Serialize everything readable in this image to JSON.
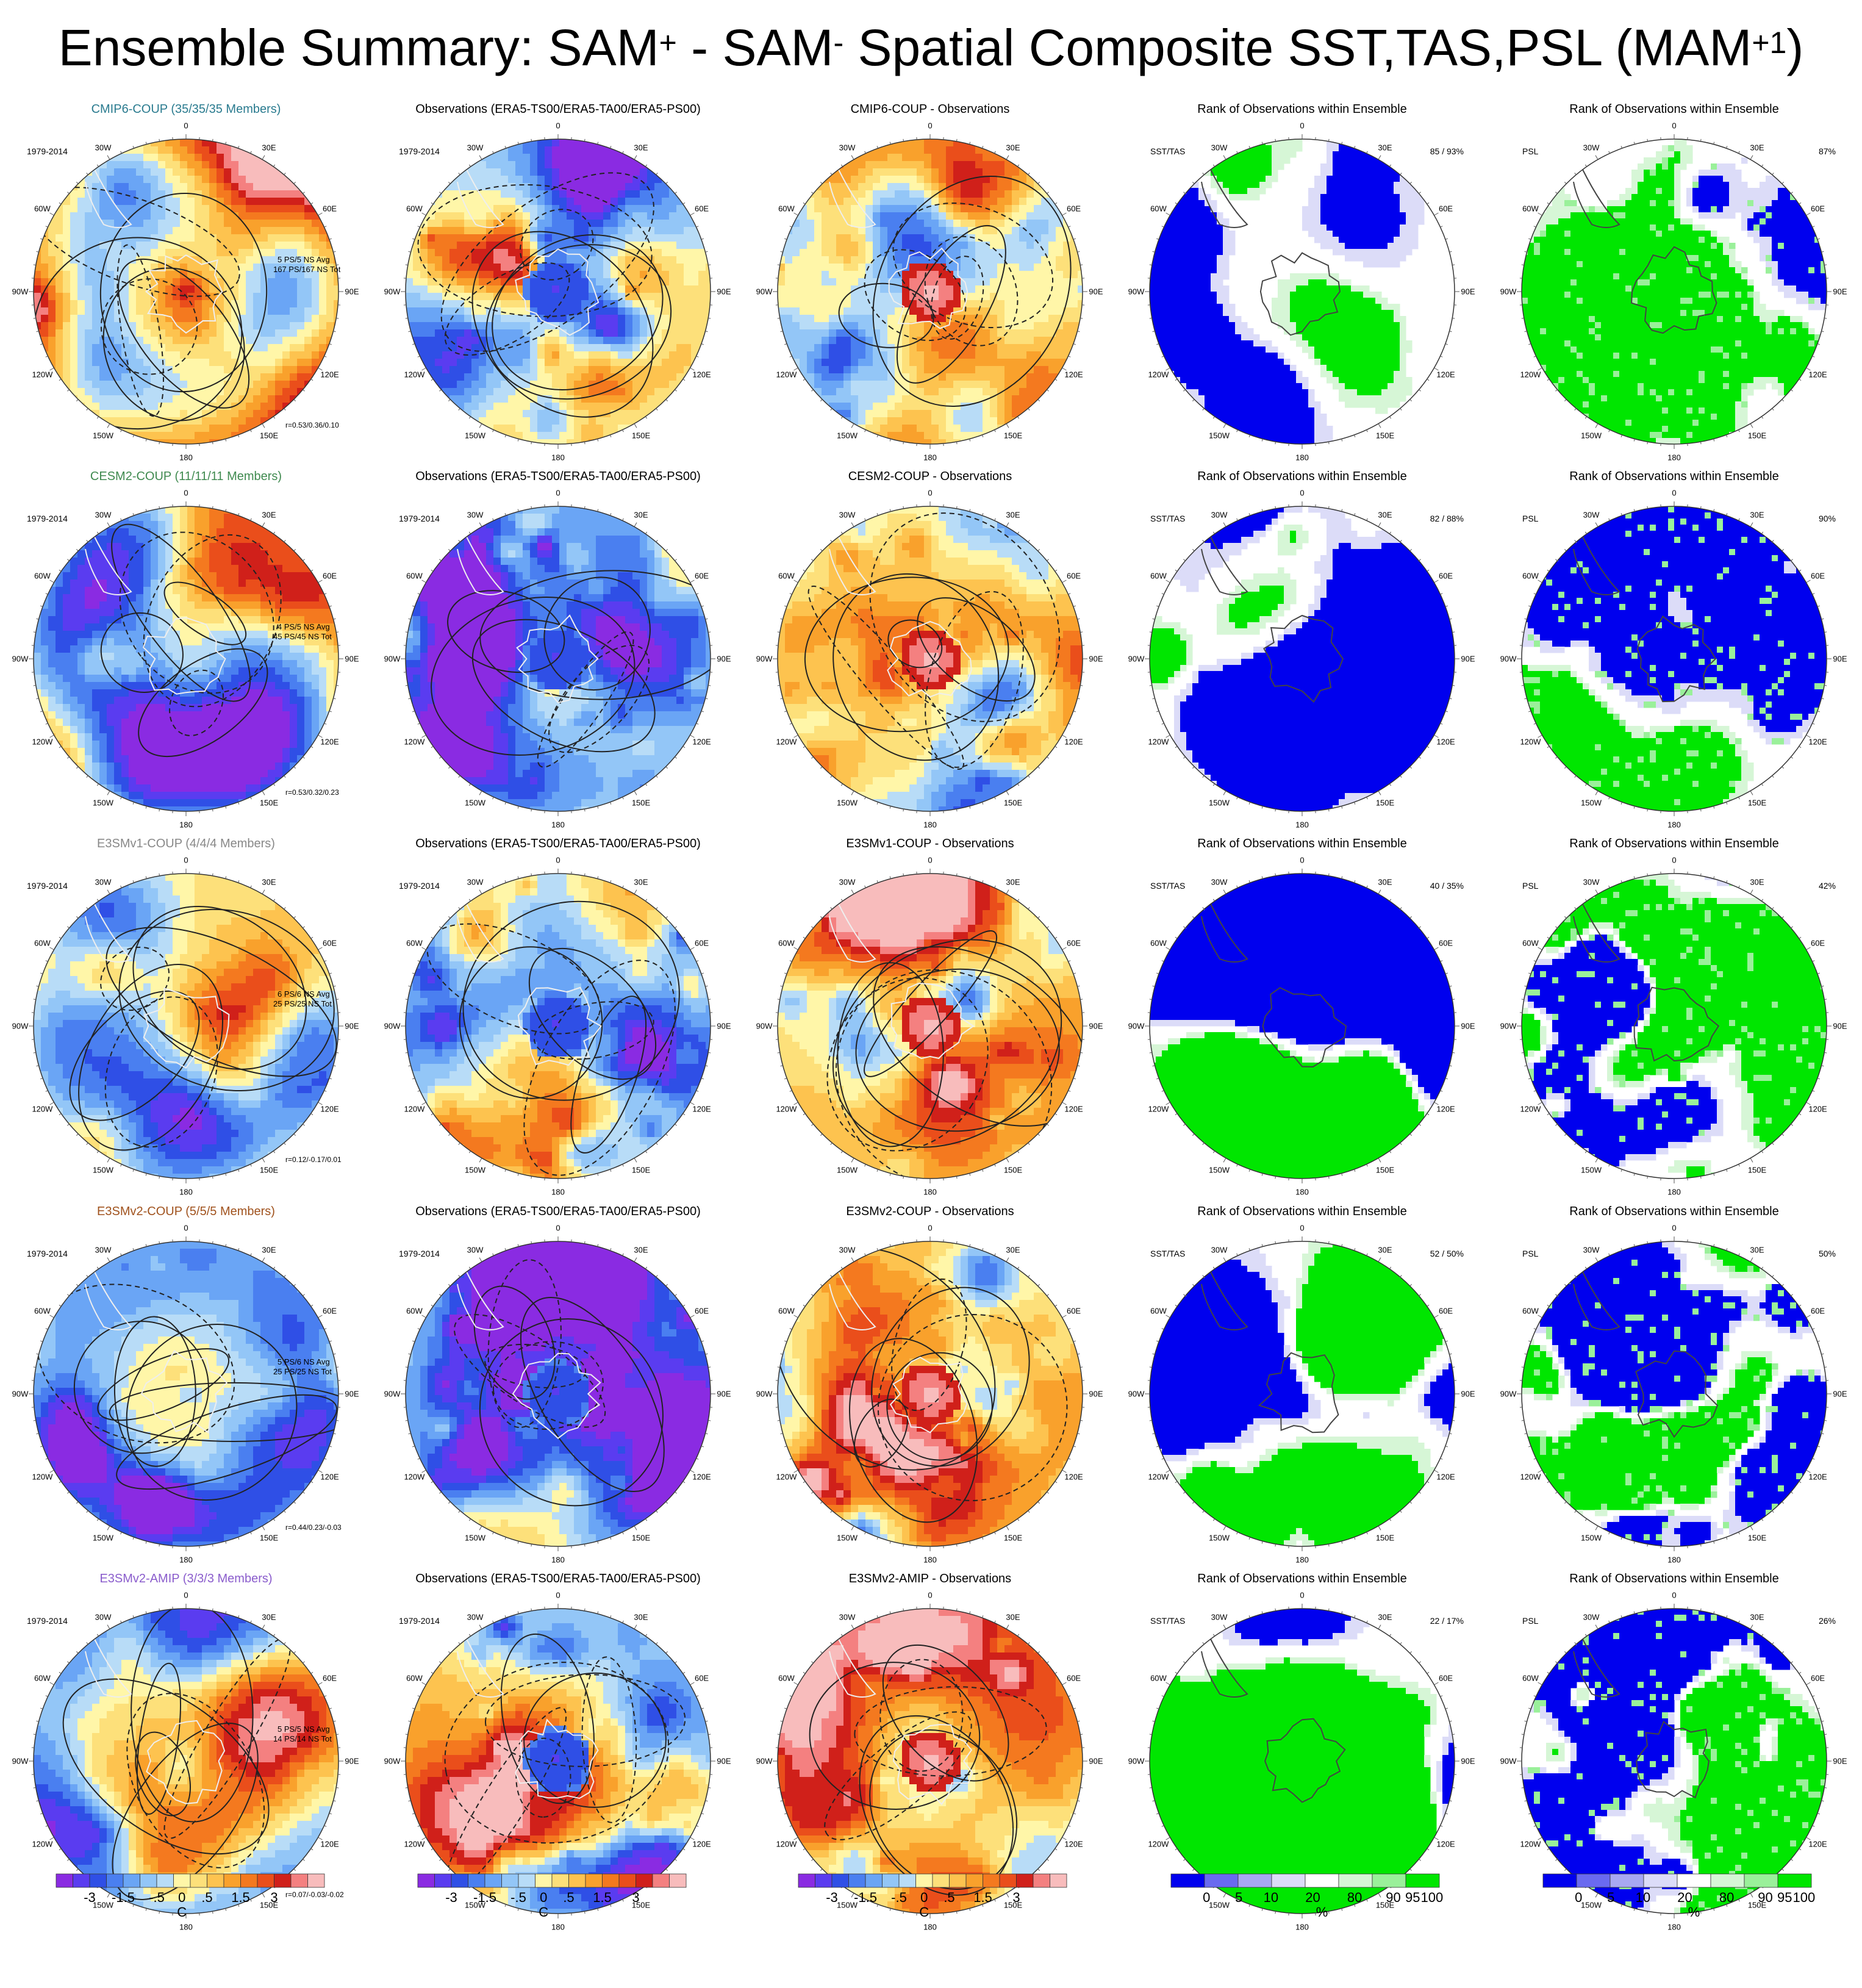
{
  "title": {
    "prefix": "Ensemble Summary: SAM",
    "sup1": "+",
    "mid": " - SAM",
    "sup2": "-",
    "rest": " Spatial Composite SST,TAS,PSL (MAM",
    "sup3": "+1",
    "end": ")"
  },
  "lon_labels": [
    "0",
    "30E",
    "60E",
    "90E",
    "120E",
    "150E",
    "180",
    "150W",
    "120W",
    "90W",
    "60W",
    "30W"
  ],
  "period_label": "1979-2014",
  "rank_labels": {
    "sst": "SST/TAS",
    "psl": "PSL"
  },
  "rows": [
    {
      "model": {
        "title": "CMIP6-COUP (35/35/35 Members)",
        "title_color": "#2a7b8f",
        "ns_line1": "5 PS/5 NS Avg",
        "ns_line2": "167 PS/167 NS Tot",
        "corr": "r=0.53/0.36/0.10"
      },
      "obs_title": "Observations (ERA5-TS00/ERA5-TA00/ERA5-PS00)",
      "diff_title": "CMIP6-COUP - Observations",
      "rank_sst": {
        "title": "Rank of Observations within Ensemble",
        "pct": "85 / 93%"
      },
      "rank_psl": {
        "title": "Rank of Observations within Ensemble",
        "pct": "87%"
      }
    },
    {
      "model": {
        "title": "CESM2-COUP (11/11/11 Members)",
        "title_color": "#3f8a4f",
        "ns_line1": "4 PS/5 NS Avg",
        "ns_line2": "45 PS/45 NS Tot",
        "corr": "r=0.53/0.32/0.23"
      },
      "obs_title": "Observations (ERA5-TS00/ERA5-TA00/ERA5-PS00)",
      "diff_title": "CESM2-COUP - Observations",
      "rank_sst": {
        "title": "Rank of Observations within Ensemble",
        "pct": "82 / 88%"
      },
      "rank_psl": {
        "title": "Rank of Observations within Ensemble",
        "pct": "90%"
      }
    },
    {
      "model": {
        "title": "E3SMv1-COUP (4/4/4 Members)",
        "title_color": "#888888",
        "ns_line1": "6 PS/6 NS Avg",
        "ns_line2": "25 PS/25 NS Tot",
        "corr": "r=0.12/-0.17/0.01"
      },
      "obs_title": "Observations (ERA5-TS00/ERA5-TA00/ERA5-PS00)",
      "diff_title": "E3SMv1-COUP - Observations",
      "rank_sst": {
        "title": "Rank of Observations within Ensemble",
        "pct": "40 / 35%"
      },
      "rank_psl": {
        "title": "Rank of Observations within Ensemble",
        "pct": "42%"
      }
    },
    {
      "model": {
        "title": "E3SMv2-COUP (5/5/5 Members)",
        "title_color": "#a0521d",
        "ns_line1": "5 PS/6 NS Avg",
        "ns_line2": "25 PS/25 NS Tot",
        "corr": "r=0.44/0.23/-0.03"
      },
      "obs_title": "Observations (ERA5-TS00/ERA5-TA00/ERA5-PS00)",
      "diff_title": "E3SMv2-COUP - Observations",
      "rank_sst": {
        "title": "Rank of Observations within Ensemble",
        "pct": "52 / 50%"
      },
      "rank_psl": {
        "title": "Rank of Observations within Ensemble",
        "pct": "50%"
      }
    },
    {
      "model": {
        "title": "E3SMv2-AMIP (3/3/3 Members)",
        "title_color": "#8a5ccc",
        "ns_line1": "5 PS/5 NS Avg",
        "ns_line2": "14 PS/14 NS Tot",
        "corr": "r=0.07/-0.03/-0.02"
      },
      "obs_title": "Observations (ERA5-TS00/ERA5-TA00/ERA5-PS00)",
      "diff_title": "E3SMv2-AMIP - Observations",
      "rank_sst": {
        "title": "Rank of Observations within Ensemble",
        "pct": "22 / 17%"
      },
      "rank_psl": {
        "title": "Rank of Observations within Ensemble",
        "pct": "26%"
      }
    }
  ],
  "colorbars": {
    "temp": {
      "ticks": [
        "-3",
        "-1.5",
        "-.5",
        "0",
        ".5",
        "1.5",
        "3"
      ],
      "unit": "C",
      "colors": [
        "#8a2be2",
        "#5a3cf0",
        "#2f4fe6",
        "#4a7ff0",
        "#6aa5f5",
        "#93c6f7",
        "#b8dcf7",
        "#fff6a8",
        "#fde07a",
        "#fdc34f",
        "#f9a12c",
        "#f4791f",
        "#ea4e1b",
        "#d0201a",
        "#f48080",
        "#f8bcbc"
      ]
    },
    "rank": {
      "ticks": [
        "0",
        "5",
        "10",
        "20",
        "80",
        "90",
        "95",
        "100"
      ],
      "unit": "%",
      "colors": [
        "#0000ee",
        "#6a6af0",
        "#a8a8f2",
        "#dcdcf8",
        "#ffffff",
        "#d6f6d6",
        "#9af09a",
        "#00e600"
      ]
    }
  },
  "chart_data": {
    "type": "heatmap",
    "title": "Ensemble Summary: SAM+ - SAM- Spatial Composite SST,TAS,PSL (MAM+1)",
    "projection": "south polar stereographic",
    "panel_columns": [
      "model ensemble mean",
      "observations",
      "model - observations",
      "rank SST/TAS",
      "rank PSL"
    ],
    "temperature_scale": {
      "unit": "C",
      "levels": [
        -3,
        -1.5,
        -0.5,
        0,
        0.5,
        1.5,
        3
      ]
    },
    "rank_scale": {
      "unit": "%",
      "levels": [
        0,
        5,
        10,
        20,
        80,
        90,
        95,
        100
      ]
    },
    "rank_percent_SST_TAS": [
      {
        "model": "CMIP6-COUP",
        "sst": 85,
        "tas": 93
      },
      {
        "model": "CESM2-COUP",
        "sst": 82,
        "tas": 88
      },
      {
        "model": "E3SMv1-COUP",
        "sst": 40,
        "tas": 35
      },
      {
        "model": "E3SMv2-COUP",
        "sst": 52,
        "tas": 50
      },
      {
        "model": "E3SMv2-AMIP",
        "sst": 22,
        "tas": 17
      }
    ],
    "rank_percent_PSL": [
      {
        "model": "CMIP6-COUP",
        "psl": 87
      },
      {
        "model": "CESM2-COUP",
        "psl": 90
      },
      {
        "model": "E3SMv1-COUP",
        "psl": 42
      },
      {
        "model": "E3SMv2-COUP",
        "psl": 50
      },
      {
        "model": "E3SMv2-AMIP",
        "psl": 26
      }
    ],
    "pattern_correlation": [
      {
        "model": "CMIP6-COUP",
        "r": [
          0.53,
          0.36,
          0.1
        ]
      },
      {
        "model": "CESM2-COUP",
        "r": [
          0.53,
          0.32,
          0.23
        ]
      },
      {
        "model": "E3SMv1-COUP",
        "r": [
          0.12,
          -0.17,
          0.01
        ]
      },
      {
        "model": "E3SMv2-COUP",
        "r": [
          0.44,
          0.23,
          -0.03
        ]
      },
      {
        "model": "E3SMv2-AMIP",
        "r": [
          0.07,
          -0.03,
          -0.02
        ]
      }
    ]
  }
}
